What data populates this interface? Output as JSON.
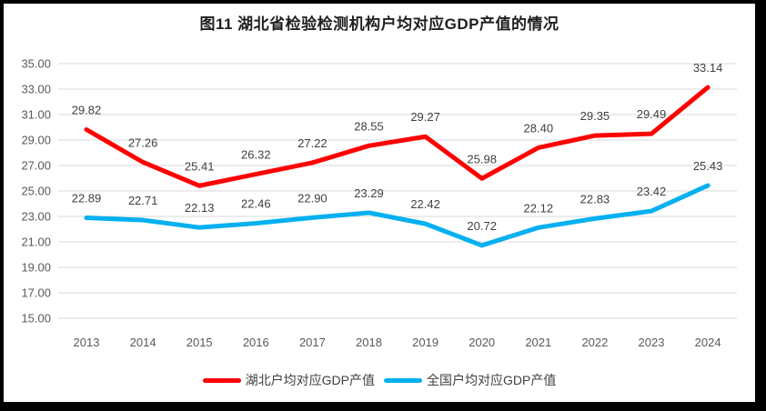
{
  "chart_data": {
    "type": "line",
    "title": "图11  湖北省检验检测机构户均对应GDP产值的情况",
    "categories": [
      "2013",
      "2014",
      "2015",
      "2016",
      "2017",
      "2018",
      "2019",
      "2020",
      "2021",
      "2022",
      "2023",
      "2024"
    ],
    "series": [
      {
        "name": "湖北户均对应GDP产值",
        "color": "#ff0000",
        "values": [
          29.82,
          27.26,
          25.41,
          26.32,
          27.22,
          28.55,
          29.27,
          25.98,
          28.4,
          29.35,
          29.49,
          33.14
        ]
      },
      {
        "name": "全国户均对应GDP产值",
        "color": "#00b0f0",
        "values": [
          22.89,
          22.71,
          22.13,
          22.46,
          22.9,
          23.29,
          22.42,
          20.72,
          22.12,
          22.83,
          23.42,
          25.43
        ]
      }
    ],
    "ylim": [
      15,
      35
    ],
    "ytick_step": 2,
    "ytick_decimals": 2,
    "value_label_decimals": 2,
    "grid": true,
    "legend_position": "bottom",
    "show_value_labels": true
  },
  "style_colors": {
    "grid": "#d9d9d9",
    "axis_text": "#595959",
    "value_label_text": "#404040",
    "title_text": "#1f1f1f",
    "frame_border": "#000000",
    "background": "#ffffff"
  }
}
